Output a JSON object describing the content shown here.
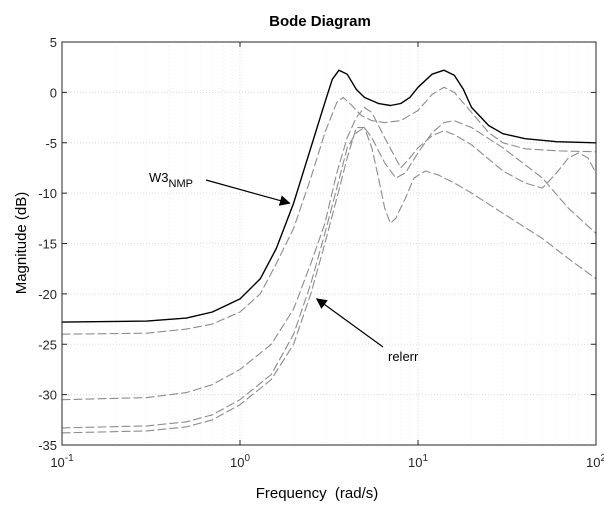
{
  "chart_data": {
    "type": "line",
    "title": "Bode Diagram",
    "xlabel": "Frequency  (rad/s)",
    "ylabel": "Magnitude (dB)",
    "xscale": "log",
    "xlim": [
      0.1,
      100
    ],
    "ylim": [
      -35,
      5
    ],
    "grid": true,
    "x_ticks": [
      {
        "value": 0.1,
        "base": "10",
        "exp": "-1"
      },
      {
        "value": 1,
        "base": "10",
        "exp": "0"
      },
      {
        "value": 10,
        "base": "10",
        "exp": "1"
      },
      {
        "value": 100,
        "base": "10",
        "exp": "2"
      }
    ],
    "y_ticks": [
      5,
      0,
      -5,
      -10,
      -15,
      -20,
      -25,
      -30,
      -35
    ],
    "annotations": [
      {
        "text": "W3",
        "subscript": "NMP",
        "points_to": [
          1.9,
          -11
        ]
      },
      {
        "text": "relerr",
        "points_to": [
          2.7,
          -20.5
        ]
      }
    ],
    "series": [
      {
        "style": "solid",
        "color": "#000000",
        "points": [
          [
            0.1,
            -22.8
          ],
          [
            0.3,
            -22.7
          ],
          [
            0.5,
            -22.4
          ],
          [
            0.7,
            -21.8
          ],
          [
            1,
            -20.5
          ],
          [
            1.3,
            -18.5
          ],
          [
            1.6,
            -15.5
          ],
          [
            2,
            -11
          ],
          [
            2.5,
            -5.5
          ],
          [
            3,
            -1
          ],
          [
            3.3,
            1.3
          ],
          [
            3.6,
            2.2
          ],
          [
            4,
            1.8
          ],
          [
            4.5,
            0.3
          ],
          [
            5,
            -0.5
          ],
          [
            6,
            -1.1
          ],
          [
            7,
            -1.3
          ],
          [
            8,
            -1.1
          ],
          [
            9,
            -0.5
          ],
          [
            10,
            0.5
          ],
          [
            12,
            1.8
          ],
          [
            14,
            2.2
          ],
          [
            16,
            1.7
          ],
          [
            18,
            0.3
          ],
          [
            20,
            -1.5
          ],
          [
            25,
            -3.3
          ],
          [
            30,
            -4.1
          ],
          [
            40,
            -4.6
          ],
          [
            60,
            -4.9
          ],
          [
            100,
            -5
          ]
        ]
      },
      {
        "style": "dashed",
        "color": "#8c8c8c",
        "points": [
          [
            0.1,
            -24
          ],
          [
            0.3,
            -23.9
          ],
          [
            0.5,
            -23.5
          ],
          [
            0.7,
            -23
          ],
          [
            1,
            -21.8
          ],
          [
            1.3,
            -20
          ],
          [
            1.6,
            -17
          ],
          [
            2,
            -13.5
          ],
          [
            2.5,
            -8.5
          ],
          [
            3,
            -4
          ],
          [
            3.5,
            -1
          ],
          [
            3.8,
            -0.5
          ],
          [
            4.2,
            -1.2
          ],
          [
            4.8,
            -2.3
          ],
          [
            5.5,
            -2.8
          ],
          [
            6.5,
            -3
          ],
          [
            8,
            -2.8
          ],
          [
            10,
            -1.8
          ],
          [
            12,
            -0.2
          ],
          [
            14,
            0.5
          ],
          [
            16,
            0
          ],
          [
            20,
            -2
          ],
          [
            25,
            -4
          ],
          [
            30,
            -5
          ],
          [
            40,
            -5.6
          ],
          [
            60,
            -5.8
          ],
          [
            100,
            -5.9
          ]
        ]
      },
      {
        "style": "dashed",
        "color": "#8c8c8c",
        "points": [
          [
            0.1,
            -30.5
          ],
          [
            0.3,
            -30.3
          ],
          [
            0.5,
            -29.8
          ],
          [
            0.7,
            -29
          ],
          [
            1,
            -27.5
          ],
          [
            1.5,
            -25
          ],
          [
            2,
            -21.5
          ],
          [
            2.5,
            -17
          ],
          [
            3,
            -13
          ],
          [
            3.5,
            -8
          ],
          [
            4,
            -4.5
          ],
          [
            4.5,
            -2.5
          ],
          [
            5,
            -1.5
          ],
          [
            5.5,
            -2
          ],
          [
            6.5,
            -4.5
          ],
          [
            8,
            -7.5
          ],
          [
            9,
            -6.5
          ],
          [
            10,
            -5.5
          ],
          [
            12,
            -4.3
          ],
          [
            14,
            -3.8
          ],
          [
            16,
            -4.2
          ],
          [
            20,
            -5.2
          ],
          [
            30,
            -7.8
          ],
          [
            40,
            -9
          ],
          [
            50,
            -9.5
          ],
          [
            60,
            -8
          ],
          [
            70,
            -6.5
          ],
          [
            80,
            -6
          ],
          [
            90,
            -6.5
          ],
          [
            100,
            -8
          ]
        ]
      },
      {
        "style": "dashed",
        "color": "#8c8c8c",
        "points": [
          [
            0.1,
            -33.3
          ],
          [
            0.3,
            -33.1
          ],
          [
            0.5,
            -32.7
          ],
          [
            0.7,
            -32
          ],
          [
            1,
            -30.5
          ],
          [
            1.5,
            -28
          ],
          [
            2,
            -24
          ],
          [
            2.5,
            -19
          ],
          [
            3,
            -14
          ],
          [
            3.5,
            -9.5
          ],
          [
            4,
            -5.5
          ],
          [
            4.5,
            -4
          ],
          [
            5,
            -3.5
          ],
          [
            5.5,
            -4.5
          ],
          [
            6.5,
            -7
          ],
          [
            7.5,
            -8.5
          ],
          [
            8.5,
            -8
          ],
          [
            10,
            -6
          ],
          [
            12,
            -4
          ],
          [
            14,
            -3
          ],
          [
            16,
            -2.8
          ],
          [
            20,
            -3.5
          ],
          [
            30,
            -5.5
          ],
          [
            50,
            -8.5
          ],
          [
            70,
            -11.5
          ],
          [
            100,
            -14
          ]
        ]
      },
      {
        "style": "dashed",
        "color": "#8c8c8c",
        "points": [
          [
            0.1,
            -33.8
          ],
          [
            0.3,
            -33.6
          ],
          [
            0.5,
            -33.2
          ],
          [
            0.7,
            -32.5
          ],
          [
            1,
            -31
          ],
          [
            1.5,
            -28.5
          ],
          [
            2,
            -25
          ],
          [
            2.5,
            -20
          ],
          [
            3,
            -15
          ],
          [
            3.5,
            -10.5
          ],
          [
            4,
            -6.5
          ],
          [
            4.5,
            -3.5
          ],
          [
            5,
            -3.5
          ],
          [
            5.5,
            -5.5
          ],
          [
            6,
            -8.5
          ],
          [
            6.5,
            -11.5
          ],
          [
            7,
            -13
          ],
          [
            7.5,
            -12.5
          ],
          [
            8.5,
            -10.5
          ],
          [
            9.5,
            -8.5
          ],
          [
            11,
            -7.8
          ],
          [
            13,
            -8.2
          ],
          [
            16,
            -9
          ],
          [
            20,
            -10
          ],
          [
            30,
            -12
          ],
          [
            50,
            -14.5
          ],
          [
            70,
            -16.5
          ],
          [
            100,
            -18.5
          ]
        ]
      }
    ]
  }
}
